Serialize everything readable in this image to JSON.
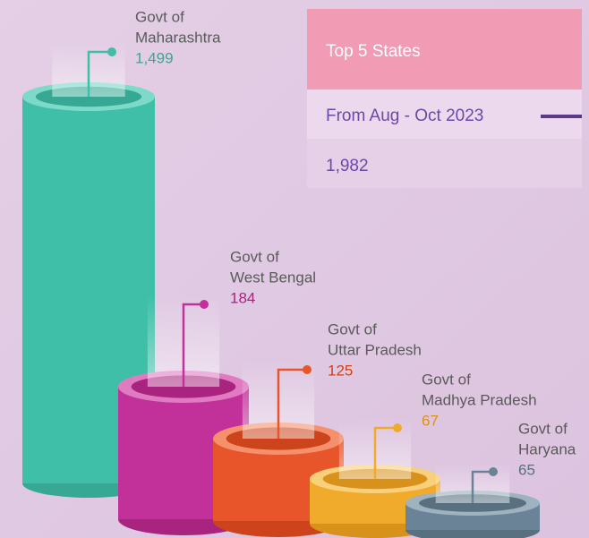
{
  "panel": {
    "title": "Top 5 States",
    "subtitle": "From Aug - Oct 2023",
    "total": "1,982"
  },
  "items": [
    {
      "lines": [
        "Govt of",
        "Maharashtra"
      ],
      "value": "1,499"
    },
    {
      "lines": [
        "Govt of",
        "West Bengal"
      ],
      "value": "184"
    },
    {
      "lines": [
        "Govt of",
        "Uttar Pradesh"
      ],
      "value": "125"
    },
    {
      "lines": [
        "Govt of",
        "Madhya Pradesh"
      ],
      "value": "67"
    },
    {
      "lines": [
        "Govt of",
        "Haryana"
      ],
      "value": "65"
    }
  ]
}
